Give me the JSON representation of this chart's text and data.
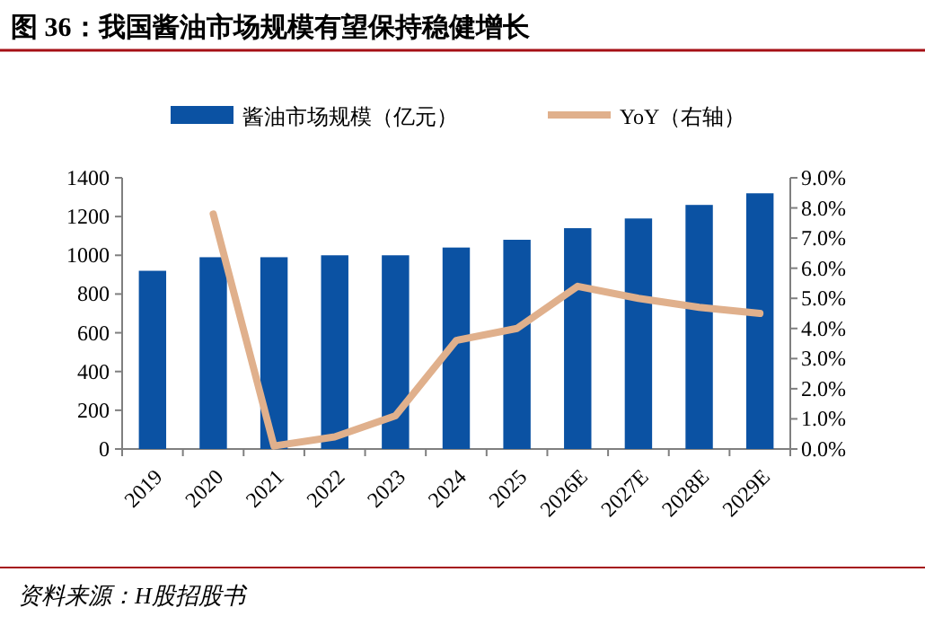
{
  "chart_data": {
    "type": "bar",
    "title": "图 36：我国酱油市场规模有望保持稳健增长",
    "categories": [
      "2019",
      "2020",
      "2021",
      "2022",
      "2023",
      "2024",
      "2025",
      "2026E",
      "2027E",
      "2028E",
      "2029E"
    ],
    "series": [
      {
        "name": "酱油市场规模（亿元）",
        "color": "#0b52a3",
        "values": [
          920,
          990,
          990,
          1000,
          1000,
          1040,
          1080,
          1140,
          1190,
          1260,
          1320
        ]
      },
      {
        "name": "YoY（右轴）",
        "type": "line",
        "axis": "y2",
        "color": "#e0b08c",
        "values": [
          null,
          7.8,
          0.1,
          0.4,
          1.1,
          3.6,
          4.0,
          5.4,
          5.0,
          4.7,
          4.5
        ]
      }
    ],
    "ylim": [
      0,
      1400
    ],
    "yticks": [
      0,
      200,
      400,
      600,
      800,
      1000,
      1200,
      1400
    ],
    "y2lim": [
      0,
      9
    ],
    "y2ticks": [
      {
        "value": 0,
        "label": "0.0%"
      },
      {
        "value": 1,
        "label": "1.0%"
      },
      {
        "value": 2,
        "label": "2.0%"
      },
      {
        "value": 3,
        "label": "3.0%"
      },
      {
        "value": 4,
        "label": "4.0%"
      },
      {
        "value": 5,
        "label": "5.0%"
      },
      {
        "value": 6,
        "label": "6.0%"
      },
      {
        "value": 7,
        "label": "7.0%"
      },
      {
        "value": 8,
        "label": "8.0%"
      },
      {
        "value": 9,
        "label": "9.0%"
      }
    ],
    "legend": "top",
    "grid": false,
    "annotations": [
      "资料来源：H股招股书"
    ]
  }
}
